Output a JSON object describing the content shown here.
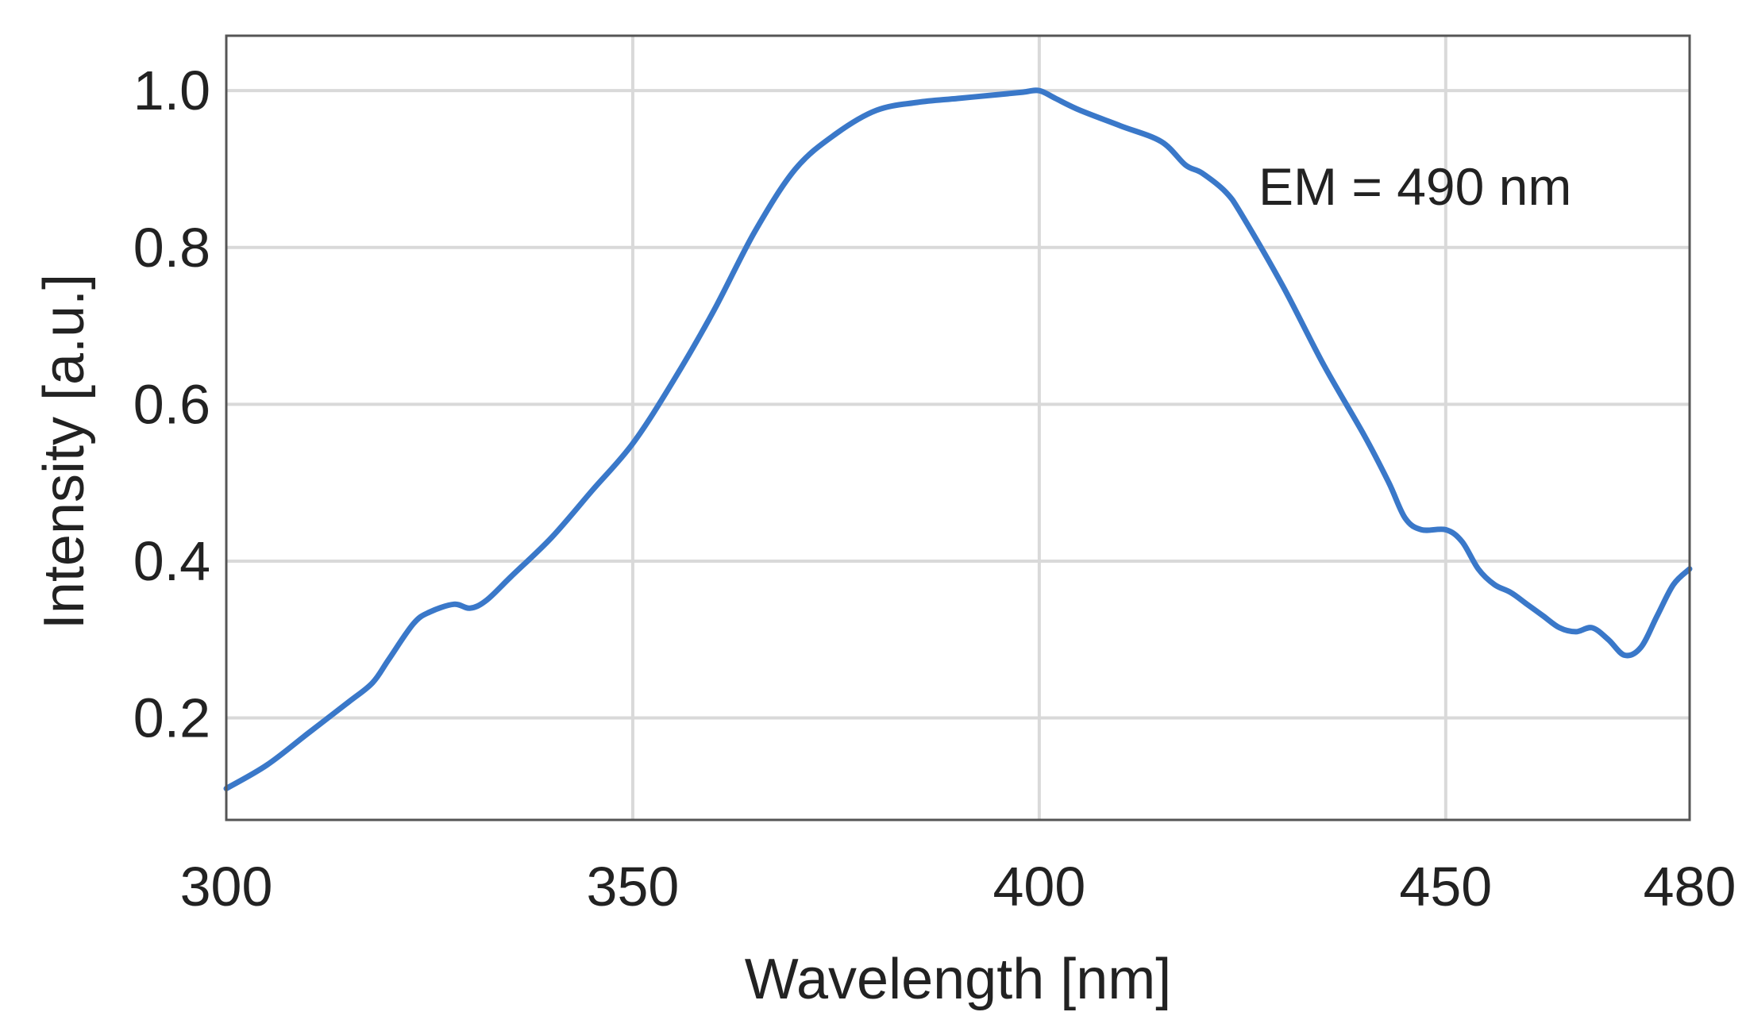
{
  "chart_data": {
    "type": "line",
    "title": "",
    "xlabel": "Wavelength [nm]",
    "ylabel": "Intensity [a.u.]",
    "xlim": [
      300,
      480
    ],
    "ylim": [
      0.07,
      1.07
    ],
    "xticks": [
      300,
      350,
      400,
      450,
      480
    ],
    "xtick_labels": [
      "300",
      "350",
      "400",
      "450",
      "480"
    ],
    "yticks": [
      0.2,
      0.4,
      0.6,
      0.8,
      1.0
    ],
    "ytick_labels": [
      "0.2",
      "0.4",
      "0.6",
      "0.8",
      "1.0"
    ],
    "grid": true,
    "legend": "none",
    "annotation": "EM = 490 nm",
    "series": [
      {
        "color": "#3a78c9",
        "x": [
          300,
          305,
          310,
          315,
          318,
          320,
          323,
          325,
          328,
          330,
          332,
          335,
          340,
          345,
          350,
          355,
          360,
          365,
          370,
          375,
          380,
          385,
          390,
          395,
          398,
          400,
          402,
          405,
          410,
          415,
          418,
          420,
          423,
          425,
          430,
          435,
          440,
          443,
          445,
          447,
          450,
          452,
          454,
          456,
          458,
          460,
          462,
          464,
          466,
          468,
          470,
          472,
          474,
          476,
          478,
          480
        ],
        "values": [
          0.11,
          0.14,
          0.18,
          0.22,
          0.245,
          0.275,
          0.32,
          0.335,
          0.345,
          0.34,
          0.35,
          0.38,
          0.43,
          0.49,
          0.55,
          0.63,
          0.72,
          0.82,
          0.9,
          0.945,
          0.975,
          0.985,
          0.99,
          0.995,
          0.998,
          1.0,
          0.99,
          0.975,
          0.955,
          0.935,
          0.905,
          0.895,
          0.87,
          0.84,
          0.75,
          0.65,
          0.56,
          0.5,
          0.455,
          0.44,
          0.44,
          0.425,
          0.39,
          0.37,
          0.36,
          0.345,
          0.33,
          0.315,
          0.31,
          0.315,
          0.3,
          0.28,
          0.29,
          0.33,
          0.37,
          0.39
        ]
      }
    ]
  }
}
